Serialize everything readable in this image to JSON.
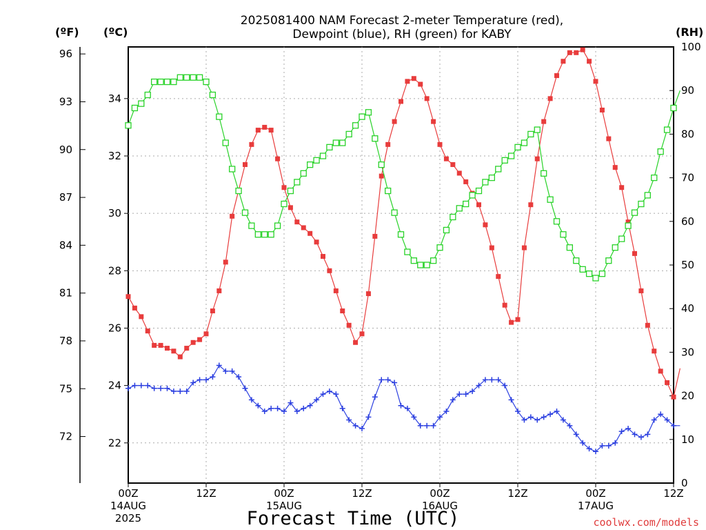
{
  "chart_data": {
    "type": "line",
    "title": "2025081400 NAM Forecast 2-meter Temperature (red),",
    "subtitle": "Dewpoint (blue), RH (green) for KABY",
    "xlabel": "Forecast Time (UTC)",
    "credit": "coolwx.com/models",
    "units": {
      "fahrenheit": "(ºF)",
      "celsius": "(ºC)",
      "rh": "(RH)"
    },
    "grid": true,
    "x_range_hours": [
      0,
      84
    ],
    "celsius_range": [
      20.6,
      35.8
    ],
    "rh_range": [
      0,
      100
    ],
    "fahrenheit_ticks": [
      "72",
      "75",
      "78",
      "81",
      "84",
      "87",
      "90",
      "93",
      "96"
    ],
    "celsius_ticks": [
      "22",
      "24",
      "26",
      "28",
      "30",
      "32",
      "34"
    ],
    "rh_ticks": [
      "0",
      "10",
      "20",
      "30",
      "40",
      "50",
      "60",
      "70",
      "80",
      "90",
      "100"
    ],
    "x_ticks": [
      {
        "hour": 0,
        "label": "00Z",
        "date": "14AUG",
        "year": "2025"
      },
      {
        "hour": 12,
        "label": "12Z"
      },
      {
        "hour": 24,
        "label": "00Z",
        "date": "15AUG"
      },
      {
        "hour": 36,
        "label": "12Z"
      },
      {
        "hour": 48,
        "label": "00Z",
        "date": "16AUG"
      },
      {
        "hour": 60,
        "label": "12Z"
      },
      {
        "hour": 72,
        "label": "00Z",
        "date": "17AUG"
      },
      {
        "hour": 84,
        "label": "12Z"
      }
    ],
    "series": [
      {
        "name": "Temperature",
        "color": "#e83c3c",
        "marker": "filled-square",
        "axis": "celsius",
        "hour_step": 1,
        "values": [
          27.1,
          26.7,
          26.4,
          25.9,
          25.4,
          25.4,
          25.3,
          25.2,
          25.0,
          25.3,
          25.5,
          25.6,
          25.8,
          26.6,
          27.3,
          28.3,
          29.9,
          30.8,
          31.7,
          32.4,
          32.9,
          33.0,
          32.9,
          31.9,
          30.9,
          30.2,
          29.7,
          29.5,
          29.3,
          29.0,
          28.5,
          28.0,
          27.3,
          26.6,
          26.1,
          25.5,
          25.8,
          27.2,
          29.2,
          31.3,
          32.4,
          33.2,
          33.9,
          34.6,
          34.7,
          34.5,
          34.0,
          33.2,
          32.4,
          31.9,
          31.7,
          31.4,
          31.1,
          30.7,
          30.3,
          29.6,
          28.8,
          27.8,
          26.8,
          26.2,
          26.3,
          28.8,
          30.3,
          31.9,
          33.2,
          34.0,
          34.8,
          35.3,
          35.6,
          35.6,
          35.7,
          35.3,
          34.6,
          33.6,
          32.6,
          31.6,
          30.9,
          29.7,
          28.6,
          27.3,
          26.1,
          25.2,
          24.5,
          24.1,
          23.6,
          24.6
        ]
      },
      {
        "name": "Dewpoint",
        "color": "#2b3fe0",
        "marker": "plus",
        "axis": "celsius",
        "hour_step": 1,
        "values": [
          23.9,
          24.0,
          24.0,
          24.0,
          23.9,
          23.9,
          23.9,
          23.8,
          23.8,
          23.8,
          24.1,
          24.2,
          24.2,
          24.3,
          24.7,
          24.5,
          24.5,
          24.3,
          23.9,
          23.5,
          23.3,
          23.1,
          23.2,
          23.2,
          23.1,
          23.4,
          23.1,
          23.2,
          23.3,
          23.5,
          23.7,
          23.8,
          23.7,
          23.2,
          22.8,
          22.6,
          22.5,
          22.9,
          23.6,
          24.2,
          24.2,
          24.1,
          23.3,
          23.2,
          22.9,
          22.6,
          22.6,
          22.6,
          22.9,
          23.1,
          23.5,
          23.7,
          23.7,
          23.8,
          24.0,
          24.2,
          24.2,
          24.2,
          24.0,
          23.5,
          23.1,
          22.8,
          22.9,
          22.8,
          22.9,
          23.0,
          23.1,
          22.8,
          22.6,
          22.3,
          22.0,
          21.8,
          21.7,
          21.9,
          21.9,
          22.0,
          22.4,
          22.5,
          22.3,
          22.2,
          22.3,
          22.8,
          23.0,
          22.8,
          22.6,
          22.6
        ]
      },
      {
        "name": "RH",
        "color": "#28d228",
        "marker": "open-square",
        "axis": "rh",
        "hour_step": 1,
        "values": [
          82,
          86,
          87,
          89,
          92,
          92,
          92,
          92,
          93,
          93,
          93,
          93,
          92,
          89,
          84,
          78,
          72,
          67,
          62,
          59,
          57,
          57,
          57,
          59,
          64,
          67,
          69,
          71,
          73,
          74,
          75,
          77,
          78,
          78,
          80,
          82,
          84,
          85,
          79,
          73,
          67,
          62,
          57,
          53,
          51,
          50,
          50,
          51,
          54,
          58,
          61,
          63,
          64,
          66,
          67,
          69,
          70,
          72,
          74,
          75,
          77,
          78,
          80,
          81,
          71,
          65,
          60,
          57,
          54,
          51,
          49,
          48,
          47,
          48,
          51,
          54,
          56,
          59,
          62,
          64,
          66,
          70,
          76,
          81,
          86,
          90
        ]
      }
    ]
  }
}
